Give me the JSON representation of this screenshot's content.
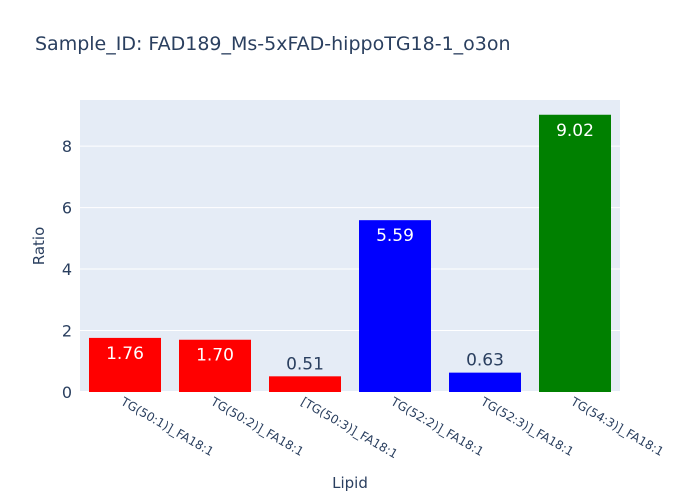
{
  "chart_data": {
    "type": "bar",
    "title": "Sample_ID: FAD189_Ms-5xFAD-hippoTG18-1_o3on",
    "xlabel": "Lipid",
    "ylabel": "Ratio",
    "categories": [
      "TG(50:1)]_FA18:1",
      "TG(50:2)]_FA18:1",
      "[TG(50:3)]_FA18:1",
      "TG(52:2)]_FA18:1",
      "TG(52:3)]_FA18:1",
      "TG(54:3)]_FA18:1"
    ],
    "values": [
      1.76,
      1.7,
      0.51,
      5.59,
      0.63,
      9.02
    ],
    "value_labels": [
      "1.76",
      "1.70",
      "0.51",
      "5.59",
      "0.63",
      "9.02"
    ],
    "bar_colors": [
      "#ff0000",
      "#ff0000",
      "#ff0000",
      "#0000ff",
      "#0000ff",
      "#008000"
    ],
    "yticks": [
      0,
      2,
      4,
      6,
      8
    ],
    "ylim": [
      0,
      9.5
    ],
    "grid": true,
    "legend": false,
    "colors": {
      "plot_background": "#e5ecf6",
      "gridline": "#ffffff",
      "text": "#2a3f5f"
    }
  }
}
